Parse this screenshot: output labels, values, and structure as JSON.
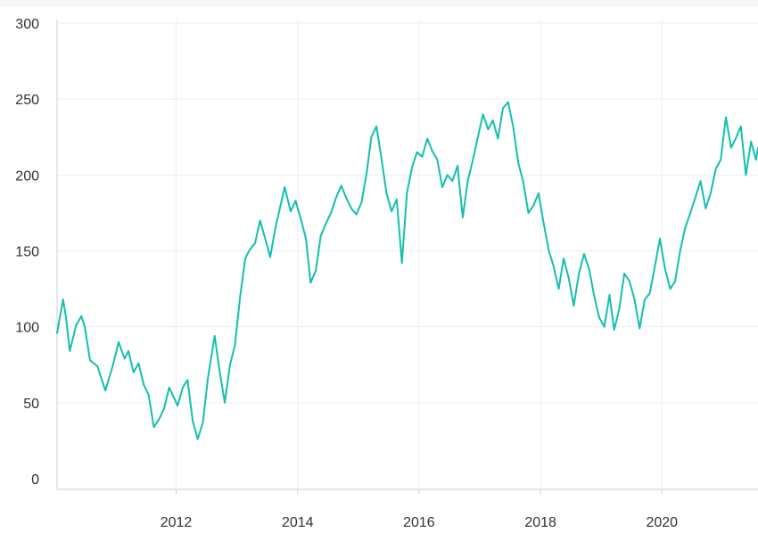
{
  "chart_data": {
    "type": "line",
    "title": "",
    "xlabel": "",
    "ylabel": "",
    "x_ticks": [
      "2012",
      "2014",
      "2016",
      "2018",
      "2020"
    ],
    "y_ticks": [
      "0",
      "50",
      "100",
      "150",
      "200",
      "250",
      "300"
    ],
    "ylim": [
      0,
      300
    ],
    "xlim": [
      "2010-01-15",
      "2021-08-01"
    ],
    "grid": true,
    "legend": "none",
    "series": [
      {
        "color": "#14bfae",
        "points": [
          [
            "2010-01-15",
            96
          ],
          [
            "2010-02-20",
            118
          ],
          [
            "2010-03-10",
            106
          ],
          [
            "2010-04-01",
            84
          ],
          [
            "2010-05-10",
            101
          ],
          [
            "2010-06-10",
            107
          ],
          [
            "2010-07-01",
            100
          ],
          [
            "2010-08-01",
            78
          ],
          [
            "2010-09-15",
            74
          ],
          [
            "2010-11-01",
            58
          ],
          [
            "2010-12-15",
            74
          ],
          [
            "2011-01-20",
            90
          ],
          [
            "2011-02-25",
            79
          ],
          [
            "2011-03-20",
            84
          ],
          [
            "2011-04-20",
            70
          ],
          [
            "2011-05-20",
            76
          ],
          [
            "2011-06-20",
            62
          ],
          [
            "2011-07-20",
            55
          ],
          [
            "2011-08-20",
            34
          ],
          [
            "2011-09-20",
            39
          ],
          [
            "2011-10-20",
            46
          ],
          [
            "2011-11-20",
            60
          ],
          [
            "2012-01-10",
            48
          ],
          [
            "2012-02-10",
            60
          ],
          [
            "2012-03-10",
            65
          ],
          [
            "2012-04-10",
            38
          ],
          [
            "2012-05-10",
            26
          ],
          [
            "2012-06-10",
            37
          ],
          [
            "2012-07-10",
            66
          ],
          [
            "2012-08-20",
            94
          ],
          [
            "2012-09-20",
            70
          ],
          [
            "2012-10-20",
            50
          ],
          [
            "2012-11-20",
            75
          ],
          [
            "2012-12-20",
            88
          ],
          [
            "2013-01-20",
            120
          ],
          [
            "2013-02-20",
            145
          ],
          [
            "2013-03-20",
            151
          ],
          [
            "2013-04-20",
            155
          ],
          [
            "2013-05-20",
            170
          ],
          [
            "2013-06-20",
            158
          ],
          [
            "2013-07-20",
            146
          ],
          [
            "2013-08-20",
            165
          ],
          [
            "2013-09-20",
            180
          ],
          [
            "2013-10-15",
            192
          ],
          [
            "2013-11-20",
            176
          ],
          [
            "2013-12-20",
            183
          ],
          [
            "2014-01-20",
            171
          ],
          [
            "2014-02-20",
            158
          ],
          [
            "2014-03-20",
            129
          ],
          [
            "2014-04-20",
            137
          ],
          [
            "2014-05-20",
            160
          ],
          [
            "2014-06-20",
            168
          ],
          [
            "2014-07-20",
            175
          ],
          [
            "2014-08-20",
            185
          ],
          [
            "2014-09-20",
            193
          ],
          [
            "2014-10-20",
            185
          ],
          [
            "2014-11-20",
            178
          ],
          [
            "2014-12-20",
            174
          ],
          [
            "2015-01-20",
            182
          ],
          [
            "2015-02-20",
            201
          ],
          [
            "2015-03-20",
            225
          ],
          [
            "2015-04-20",
            232
          ],
          [
            "2015-05-20",
            211
          ],
          [
            "2015-06-20",
            188
          ],
          [
            "2015-07-20",
            176
          ],
          [
            "2015-08-20",
            184
          ],
          [
            "2015-09-20",
            142
          ],
          [
            "2015-10-20",
            188
          ],
          [
            "2015-11-20",
            205
          ],
          [
            "2015-12-20",
            215
          ],
          [
            "2016-01-20",
            212
          ],
          [
            "2016-02-20",
            224
          ],
          [
            "2016-03-20",
            216
          ],
          [
            "2016-04-20",
            210
          ],
          [
            "2016-05-20",
            192
          ],
          [
            "2016-06-20",
            200
          ],
          [
            "2016-07-20",
            196
          ],
          [
            "2016-08-20",
            206
          ],
          [
            "2016-09-20",
            172
          ],
          [
            "2016-10-20",
            196
          ],
          [
            "2016-11-20",
            210
          ],
          [
            "2016-12-20",
            225
          ],
          [
            "2017-01-20",
            240
          ],
          [
            "2017-02-20",
            230
          ],
          [
            "2017-03-20",
            236
          ],
          [
            "2017-04-20",
            224
          ],
          [
            "2017-05-20",
            244
          ],
          [
            "2017-06-20",
            248
          ],
          [
            "2017-07-20",
            232
          ],
          [
            "2017-08-20",
            208
          ],
          [
            "2017-09-20",
            195
          ],
          [
            "2017-10-20",
            175
          ],
          [
            "2017-11-20",
            180
          ],
          [
            "2017-12-20",
            188
          ],
          [
            "2018-01-20",
            168
          ],
          [
            "2018-02-20",
            150
          ],
          [
            "2018-03-20",
            140
          ],
          [
            "2018-04-20",
            125
          ],
          [
            "2018-05-20",
            145
          ],
          [
            "2018-06-20",
            132
          ],
          [
            "2018-07-20",
            114
          ],
          [
            "2018-08-20",
            135
          ],
          [
            "2018-09-20",
            148
          ],
          [
            "2018-10-20",
            138
          ],
          [
            "2018-11-20",
            120
          ],
          [
            "2018-12-20",
            106
          ],
          [
            "2019-01-20",
            100
          ],
          [
            "2019-02-20",
            121
          ],
          [
            "2019-03-20",
            98
          ],
          [
            "2019-04-20",
            112
          ],
          [
            "2019-05-20",
            135
          ],
          [
            "2019-06-20",
            130
          ],
          [
            "2019-07-20",
            118
          ],
          [
            "2019-08-20",
            99
          ],
          [
            "2019-09-20",
            118
          ],
          [
            "2019-10-20",
            122
          ],
          [
            "2019-11-20",
            140
          ],
          [
            "2019-12-20",
            158
          ],
          [
            "2020-01-20",
            138
          ],
          [
            "2020-02-20",
            125
          ],
          [
            "2020-03-20",
            130
          ],
          [
            "2020-04-20",
            150
          ],
          [
            "2020-05-20",
            165
          ],
          [
            "2020-06-20",
            175
          ],
          [
            "2020-07-20",
            185
          ],
          [
            "2020-08-20",
            196
          ],
          [
            "2020-09-20",
            178
          ],
          [
            "2020-10-20",
            188
          ],
          [
            "2020-11-20",
            204
          ],
          [
            "2020-12-20",
            210
          ],
          [
            "2021-01-20",
            238
          ],
          [
            "2021-02-20",
            218
          ],
          [
            "2021-03-20",
            224
          ],
          [
            "2021-04-20",
            232
          ],
          [
            "2021-05-20",
            200
          ],
          [
            "2021-06-20",
            222
          ],
          [
            "2021-07-20",
            210
          ],
          [
            "2021-08-01",
            218
          ]
        ]
      }
    ]
  }
}
